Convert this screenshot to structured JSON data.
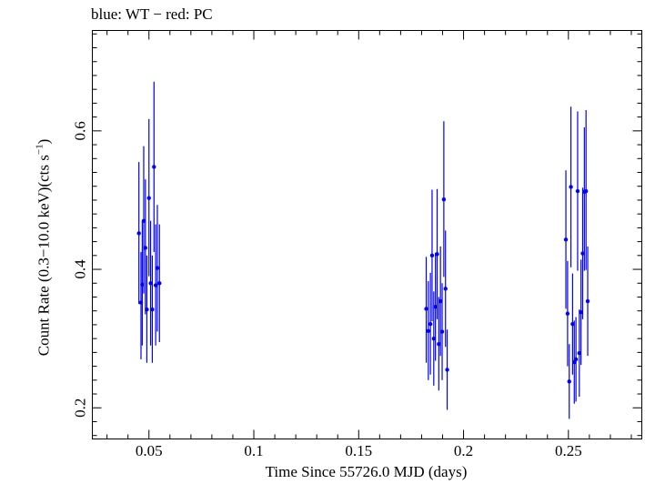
{
  "chart_data": {
    "type": "scatter",
    "title": "blue: WT − red: PC",
    "xlabel": "Time Since 55726.0 MJD (days)",
    "ylabel": {
      "main": "Count Rate (0.3−10.0 keV)(cts s",
      "sup": "−1",
      "tail": ")"
    },
    "xlim": [
      0.023,
      0.285
    ],
    "ylim": [
      0.155,
      0.745
    ],
    "xticks": [
      {
        "value": 0.05,
        "label": "0.05"
      },
      {
        "value": 0.1,
        "label": "0.1"
      },
      {
        "value": 0.15,
        "label": "0.15"
      },
      {
        "value": 0.2,
        "label": "0.2"
      },
      {
        "value": 0.25,
        "label": "0.25"
      }
    ],
    "yticks": [
      {
        "value": 0.2,
        "label": "0.2"
      },
      {
        "value": 0.4,
        "label": "0.4"
      },
      {
        "value": 0.6,
        "label": "0.6"
      }
    ],
    "grid": false,
    "colors": {
      "WT": "#0000ff",
      "PC": "#ff0000"
    },
    "series": [
      {
        "name": "WT",
        "color": "#0000ff",
        "points": [
          {
            "x": 0.0452,
            "y": 0.452,
            "lo": 0.35,
            "hi": 0.555
          },
          {
            "x": 0.0462,
            "y": 0.352,
            "lo": 0.27,
            "hi": 0.425
          },
          {
            "x": 0.0468,
            "y": 0.378,
            "lo": 0.29,
            "hi": 0.47
          },
          {
            "x": 0.0475,
            "y": 0.47,
            "lo": 0.365,
            "hi": 0.578
          },
          {
            "x": 0.0483,
            "y": 0.431,
            "lo": 0.335,
            "hi": 0.53
          },
          {
            "x": 0.049,
            "y": 0.342,
            "lo": 0.265,
            "hi": 0.42
          },
          {
            "x": 0.05,
            "y": 0.503,
            "lo": 0.39,
            "hi": 0.617
          },
          {
            "x": 0.0508,
            "y": 0.38,
            "lo": 0.29,
            "hi": 0.47
          },
          {
            "x": 0.0516,
            "y": 0.342,
            "lo": 0.265,
            "hi": 0.42
          },
          {
            "x": 0.0524,
            "y": 0.548,
            "lo": 0.425,
            "hi": 0.671
          },
          {
            "x": 0.0532,
            "y": 0.377,
            "lo": 0.29,
            "hi": 0.465
          },
          {
            "x": 0.054,
            "y": 0.402,
            "lo": 0.31,
            "hi": 0.493
          },
          {
            "x": 0.055,
            "y": 0.38,
            "lo": 0.295,
            "hi": 0.465
          }
        ]
      },
      {
        "name": "WT",
        "color": "#0000ff",
        "points": [
          {
            "x": 0.1822,
            "y": 0.343,
            "lo": 0.265,
            "hi": 0.418
          },
          {
            "x": 0.1832,
            "y": 0.311,
            "lo": 0.24,
            "hi": 0.383
          },
          {
            "x": 0.1842,
            "y": 0.321,
            "lo": 0.248,
            "hi": 0.395
          },
          {
            "x": 0.185,
            "y": 0.42,
            "lo": 0.325,
            "hi": 0.515
          },
          {
            "x": 0.1858,
            "y": 0.3,
            "lo": 0.232,
            "hi": 0.368
          },
          {
            "x": 0.1866,
            "y": 0.346,
            "lo": 0.268,
            "hi": 0.424
          },
          {
            "x": 0.1874,
            "y": 0.422,
            "lo": 0.328,
            "hi": 0.516
          },
          {
            "x": 0.1882,
            "y": 0.292,
            "lo": 0.225,
            "hi": 0.36
          },
          {
            "x": 0.189,
            "y": 0.354,
            "lo": 0.275,
            "hi": 0.433
          },
          {
            "x": 0.1898,
            "y": 0.31,
            "lo": 0.24,
            "hi": 0.38
          },
          {
            "x": 0.1906,
            "y": 0.501,
            "lo": 0.389,
            "hi": 0.614
          },
          {
            "x": 0.1914,
            "y": 0.372,
            "lo": 0.288,
            "hi": 0.456
          },
          {
            "x": 0.1922,
            "y": 0.255,
            "lo": 0.197,
            "hi": 0.313
          }
        ]
      },
      {
        "name": "WT",
        "color": "#0000ff",
        "points": [
          {
            "x": 0.2488,
            "y": 0.443,
            "lo": 0.343,
            "hi": 0.543
          },
          {
            "x": 0.2496,
            "y": 0.336,
            "lo": 0.26,
            "hi": 0.412
          },
          {
            "x": 0.2504,
            "y": 0.238,
            "lo": 0.184,
            "hi": 0.292
          },
          {
            "x": 0.2512,
            "y": 0.519,
            "lo": 0.403,
            "hi": 0.635
          },
          {
            "x": 0.252,
            "y": 0.321,
            "lo": 0.248,
            "hi": 0.394
          },
          {
            "x": 0.2528,
            "y": 0.266,
            "lo": 0.206,
            "hi": 0.326
          },
          {
            "x": 0.2536,
            "y": 0.27,
            "lo": 0.209,
            "hi": 0.331
          },
          {
            "x": 0.2544,
            "y": 0.513,
            "lo": 0.398,
            "hi": 0.628
          },
          {
            "x": 0.2552,
            "y": 0.279,
            "lo": 0.216,
            "hi": 0.342
          },
          {
            "x": 0.256,
            "y": 0.338,
            "lo": 0.262,
            "hi": 0.414
          },
          {
            "x": 0.2568,
            "y": 0.423,
            "lo": 0.328,
            "hi": 0.518
          },
          {
            "x": 0.2576,
            "y": 0.512,
            "lo": 0.398,
            "hi": 0.605
          },
          {
            "x": 0.2584,
            "y": 0.513,
            "lo": 0.399,
            "hi": 0.63
          },
          {
            "x": 0.2592,
            "y": 0.354,
            "lo": 0.275,
            "hi": 0.433
          }
        ]
      }
    ]
  }
}
